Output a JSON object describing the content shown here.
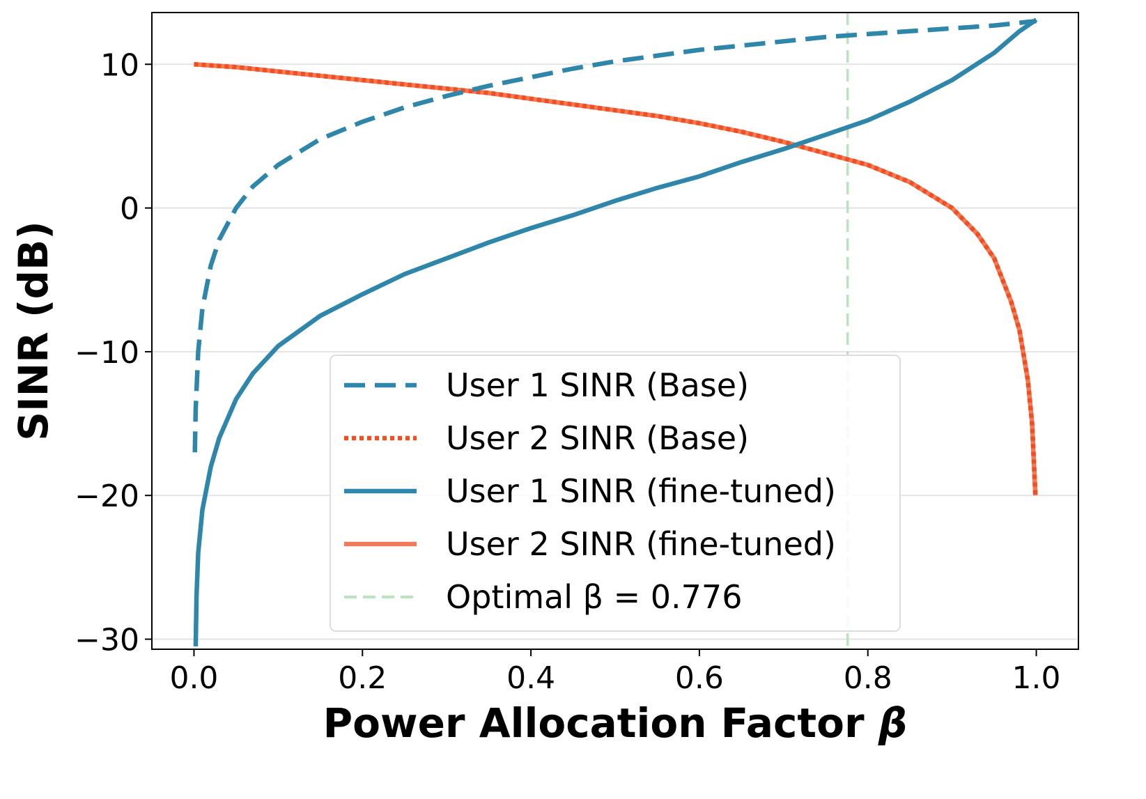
{
  "chart_data": {
    "type": "line",
    "title": "",
    "xlabel": "Power Allocation Factor",
    "xlabel_symbol": "β",
    "ylabel": "SINR (dB)",
    "xlim": [
      -0.05,
      1.05
    ],
    "ylim": [
      -30.7,
      13.6
    ],
    "xticks": [
      0.0,
      0.2,
      0.4,
      0.6,
      0.8,
      1.0
    ],
    "xtick_labels": [
      "0.0",
      "0.2",
      "0.4",
      "0.6",
      "0.8",
      "1.0"
    ],
    "yticks": [
      -30,
      -20,
      -10,
      0,
      10
    ],
    "ytick_labels": [
      "−30",
      "−20",
      "−10",
      "0",
      "10"
    ],
    "grid": "horizontal",
    "legend_position": "lower-center",
    "series": [
      {
        "name": "User 1 SINR (Base)",
        "color": "#2e86ab",
        "style": "dashed",
        "x": [
          0.001,
          0.002,
          0.005,
          0.01,
          0.02,
          0.03,
          0.05,
          0.07,
          0.1,
          0.15,
          0.2,
          0.25,
          0.3,
          0.35,
          0.4,
          0.45,
          0.5,
          0.55,
          0.6,
          0.65,
          0.7,
          0.75,
          0.8,
          0.85,
          0.9,
          0.95,
          0.99,
          1.0
        ],
        "y": [
          -17.0,
          -14.0,
          -10.0,
          -7.0,
          -4.0,
          -2.2,
          0.0,
          1.5,
          3.0,
          4.8,
          6.0,
          7.0,
          7.8,
          8.5,
          9.1,
          9.7,
          10.2,
          10.6,
          11.0,
          11.3,
          11.6,
          11.9,
          12.1,
          12.3,
          12.5,
          12.7,
          12.95,
          13.0
        ]
      },
      {
        "name": "User 2 SINR (Base)",
        "color": "#f24e1e",
        "style": "dotted",
        "x": [
          0.0,
          0.05,
          0.1,
          0.15,
          0.2,
          0.25,
          0.3,
          0.35,
          0.4,
          0.45,
          0.5,
          0.55,
          0.6,
          0.65,
          0.7,
          0.75,
          0.8,
          0.85,
          0.9,
          0.93,
          0.95,
          0.97,
          0.98,
          0.99,
          0.995,
          0.999
        ],
        "y": [
          10.0,
          9.8,
          9.5,
          9.2,
          8.9,
          8.6,
          8.3,
          8.0,
          7.6,
          7.2,
          6.8,
          6.4,
          5.9,
          5.3,
          4.6,
          3.8,
          3.0,
          1.8,
          0.0,
          -1.8,
          -3.5,
          -6.5,
          -8.5,
          -12.0,
          -15.0,
          -20.0
        ]
      },
      {
        "name": "User 1 SINR (fine-tuned)",
        "color": "#2e86ab",
        "style": "solid",
        "x": [
          0.002,
          0.003,
          0.005,
          0.01,
          0.02,
          0.03,
          0.05,
          0.07,
          0.1,
          0.15,
          0.2,
          0.25,
          0.3,
          0.35,
          0.4,
          0.45,
          0.5,
          0.55,
          0.6,
          0.65,
          0.7,
          0.75,
          0.8,
          0.85,
          0.9,
          0.95,
          0.98,
          1.0
        ],
        "y": [
          -30.5,
          -27.0,
          -24.0,
          -21.0,
          -18.0,
          -16.0,
          -13.3,
          -11.5,
          -9.6,
          -7.5,
          -6.0,
          -4.6,
          -3.5,
          -2.4,
          -1.4,
          -0.5,
          0.5,
          1.4,
          2.2,
          3.2,
          4.1,
          5.1,
          6.1,
          7.4,
          8.9,
          10.8,
          12.3,
          13.1
        ]
      },
      {
        "name": "User 2 SINR (fine-tuned)",
        "color": "#f07a5a",
        "style": "solid",
        "x": [
          0.0,
          0.05,
          0.1,
          0.15,
          0.2,
          0.25,
          0.3,
          0.35,
          0.4,
          0.45,
          0.5,
          0.55,
          0.6,
          0.65,
          0.7,
          0.75,
          0.8,
          0.85,
          0.9,
          0.93,
          0.95,
          0.97,
          0.98,
          0.99,
          0.995,
          0.999
        ],
        "y": [
          10.0,
          9.8,
          9.5,
          9.2,
          8.9,
          8.6,
          8.3,
          8.0,
          7.6,
          7.2,
          6.8,
          6.4,
          5.9,
          5.3,
          4.6,
          3.8,
          3.0,
          1.8,
          0.0,
          -1.8,
          -3.5,
          -6.5,
          -8.5,
          -12.0,
          -15.0,
          -20.0
        ]
      }
    ],
    "reference_lines": [
      {
        "name": "Optimal β = 0.776",
        "orientation": "vertical",
        "x": 0.776,
        "color": "#b9e4be",
        "style": "dashed"
      }
    ]
  }
}
